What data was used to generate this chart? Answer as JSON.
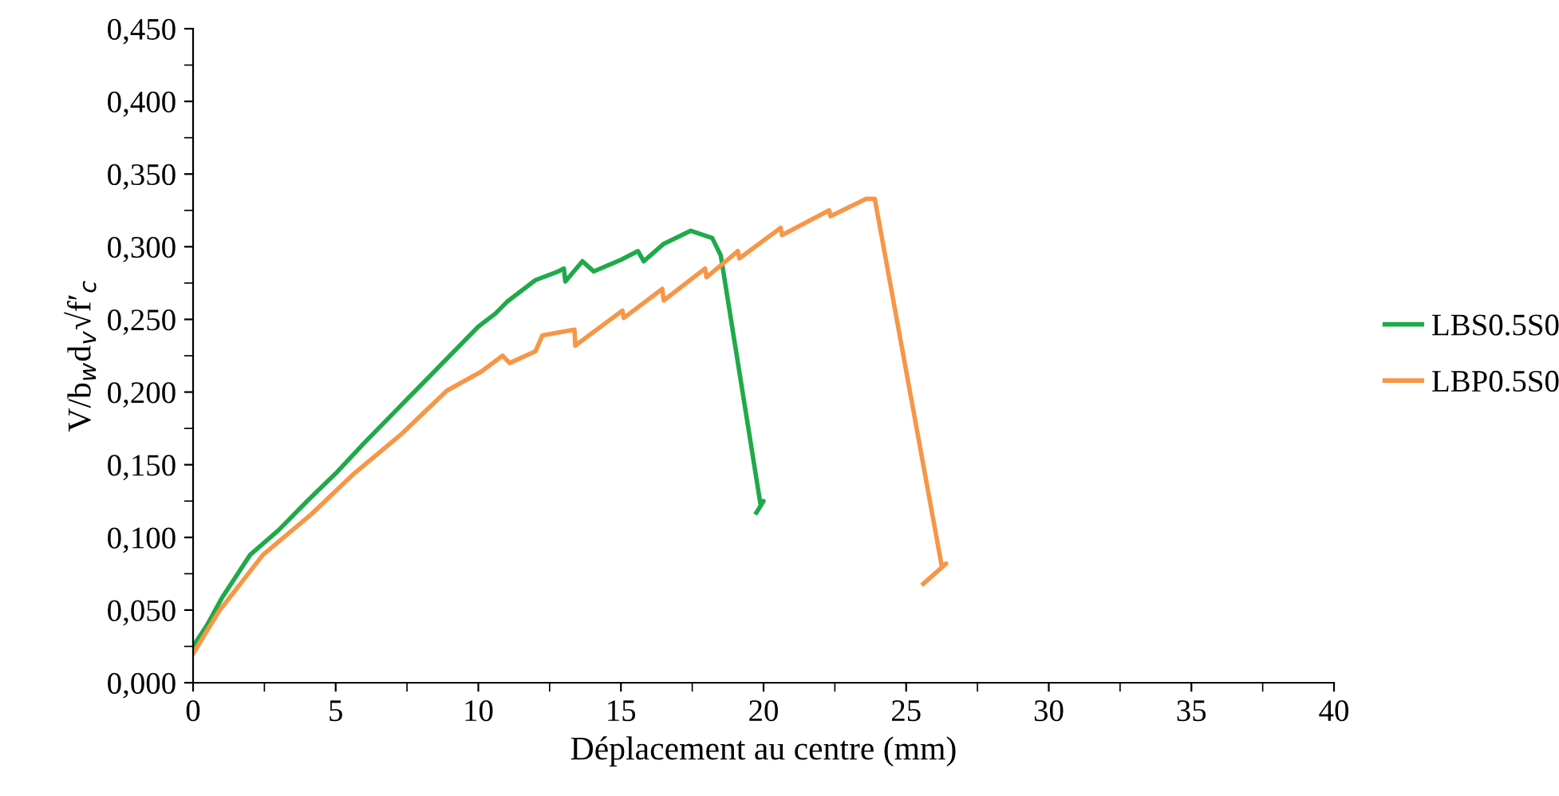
{
  "chart_data": {
    "type": "line",
    "xlabel": "Déplacement au centre (mm)",
    "ylabel": "V/b$_{w}$d$_{v}$√f′$_{c}$",
    "xlim": [
      0,
      40
    ],
    "ylim": [
      0,
      0.45
    ],
    "xticks": [
      0,
      {
        "value": 2.5,
        "label": null
      },
      5,
      {
        "value": 7.5,
        "label": null
      },
      10,
      {
        "value": 12.5,
        "label": null
      },
      15,
      {
        "value": 17.5,
        "label": null
      },
      20,
      {
        "value": 22.5,
        "label": null
      },
      25,
      {
        "value": 27.5,
        "label": null
      },
      30,
      {
        "value": 32.5,
        "label": null
      },
      35,
      {
        "value": 37.5,
        "label": null
      },
      40
    ],
    "yticks": [
      {
        "value": 0,
        "label": "0,000"
      },
      {
        "value": 0.025,
        "label": null
      },
      {
        "value": 0.05,
        "label": "0,050"
      },
      {
        "value": 0.075,
        "label": null
      },
      {
        "value": 0.1,
        "label": "0,100"
      },
      {
        "value": 0.125,
        "label": null
      },
      {
        "value": 0.15,
        "label": "0,150"
      },
      {
        "value": 0.175,
        "label": null
      },
      {
        "value": 0.2,
        "label": "0,200"
      },
      {
        "value": 0.225,
        "label": null
      },
      {
        "value": 0.25,
        "label": "0,250"
      },
      {
        "value": 0.275,
        "label": null
      },
      {
        "value": 0.3,
        "label": "0,300"
      },
      {
        "value": 0.325,
        "label": null
      },
      {
        "value": 0.35,
        "label": "0,350"
      },
      {
        "value": 0.375,
        "label": null
      },
      {
        "value": 0.4,
        "label": "0,400"
      },
      {
        "value": 0.425,
        "label": null
      },
      {
        "value": 0.45,
        "label": "0,450"
      }
    ],
    "grid": false,
    "legend": "right",
    "marker": "none",
    "line_style": "solid",
    "series": [
      {
        "name": "LBS0.5S0",
        "color": "#1faa4a",
        "x": [
          0,
          0.5,
          1,
          2,
          3,
          4,
          5,
          6,
          7,
          8,
          9,
          10,
          10.6,
          11,
          12,
          12.8,
          13,
          13.05,
          13.65,
          14.05,
          15,
          15.6,
          15.8,
          16.5,
          17.45,
          18.2,
          18.5,
          19.9,
          20,
          19.75
        ],
        "values": [
          0.025,
          0.04,
          0.058,
          0.088,
          0.105,
          0.125,
          0.144,
          0.165,
          0.185,
          0.205,
          0.225,
          0.245,
          0.254,
          0.262,
          0.277,
          0.283,
          0.285,
          0.276,
          0.29,
          0.283,
          0.291,
          0.297,
          0.29,
          0.302,
          0.311,
          0.306,
          0.294,
          0.122,
          0.125,
          0.117
        ]
      },
      {
        "name": "LBP0.5S0",
        "color": "#f79646",
        "x": [
          0,
          0.9,
          2.45,
          4.15,
          5.65,
          7.3,
          8.9,
          10.1,
          10.85,
          11.1,
          12,
          12.25,
          13.37,
          13.4,
          15.05,
          15.1,
          16.45,
          16.5,
          17.95,
          18.0,
          19.1,
          19.15,
          20.6,
          20.65,
          22.3,
          22.35,
          23.6,
          23.9,
          26.25,
          26.4,
          25.6
        ],
        "values": [
          0.02,
          0.049,
          0.088,
          0.116,
          0.144,
          0.171,
          0.201,
          0.214,
          0.225,
          0.22,
          0.228,
          0.239,
          0.243,
          0.232,
          0.256,
          0.251,
          0.271,
          0.263,
          0.285,
          0.279,
          0.297,
          0.292,
          0.313,
          0.308,
          0.325,
          0.321,
          0.333,
          0.333,
          0.08,
          0.082,
          0.068
        ]
      }
    ]
  }
}
